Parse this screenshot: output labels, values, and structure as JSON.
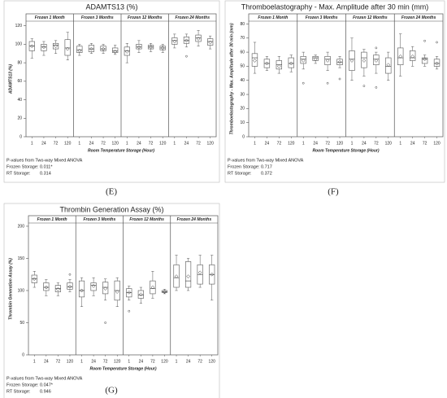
{
  "chart_data": [
    {
      "type": "box",
      "title": "ADAMTS13 (%)",
      "ylabel": "ADAMTS13 (%)",
      "xlabel": "Room Temperature Storage (Hour)",
      "panel_label": "(E)",
      "ylim": [
        0,
        125
      ],
      "yticks": [
        0,
        20,
        40,
        60,
        80,
        100,
        120
      ],
      "pvalues_heading": "P-values from Two-way Mixed ANOVA",
      "pvalues": [
        {
          "label": "Frozen Storage:",
          "value": "0.011*"
        },
        {
          "label": "RT Storage:",
          "value": "0.314"
        }
      ],
      "facets": [
        {
          "name": "Frozen  1 Month",
          "categories": [
            "1",
            "24",
            "72",
            "120"
          ],
          "boxes": [
            {
              "min": 85,
              "q1": 93,
              "median": 98,
              "q3": 103,
              "max": 106,
              "mean": 98,
              "outliers": []
            },
            {
              "min": 88,
              "q1": 93,
              "median": 97,
              "q3": 100,
              "max": 103,
              "mean": 97,
              "outliers": []
            },
            {
              "min": 90,
              "q1": 95,
              "median": 99,
              "q3": 101,
              "max": 104,
              "mean": 98,
              "outliers": []
            },
            {
              "min": 83,
              "q1": 88,
              "median": 96,
              "q3": 105,
              "max": 113,
              "mean": 95,
              "outliers": []
            }
          ]
        },
        {
          "name": "Frozen  3 Months",
          "categories": [
            "1",
            "24",
            "72",
            "120"
          ],
          "boxes": [
            {
              "min": 88,
              "q1": 91,
              "median": 94,
              "q3": 98,
              "max": 100,
              "mean": 93,
              "outliers": []
            },
            {
              "min": 90,
              "q1": 92,
              "median": 95,
              "q3": 99,
              "max": 101,
              "mean": 95,
              "outliers": []
            },
            {
              "min": 90,
              "q1": 93,
              "median": 95,
              "q3": 98,
              "max": 100,
              "mean": 95,
              "outliers": []
            },
            {
              "min": 89,
              "q1": 91,
              "median": 93,
              "q3": 96,
              "max": 99,
              "mean": 92,
              "outliers": []
            }
          ]
        },
        {
          "name": "Frozen  12 Months",
          "categories": [
            "1",
            "24",
            "72",
            "120"
          ],
          "boxes": [
            {
              "min": 80,
              "q1": 88,
              "median": 93,
              "q3": 97,
              "max": 101,
              "mean": 92,
              "outliers": []
            },
            {
              "min": 91,
              "q1": 95,
              "median": 97,
              "q3": 100,
              "max": 104,
              "mean": 97,
              "outliers": []
            },
            {
              "min": 92,
              "q1": 95,
              "median": 97,
              "q3": 99,
              "max": 101,
              "mean": 97,
              "outliers": []
            },
            {
              "min": 91,
              "q1": 94,
              "median": 96,
              "q3": 98,
              "max": 100,
              "mean": 96,
              "outliers": []
            }
          ]
        },
        {
          "name": "Frozen  24 Months",
          "categories": [
            "1",
            "24",
            "72",
            "120"
          ],
          "boxes": [
            {
              "min": 96,
              "q1": 100,
              "median": 104,
              "q3": 107,
              "max": 111,
              "mean": 103,
              "outliers": []
            },
            {
              "min": 97,
              "q1": 101,
              "median": 104,
              "q3": 108,
              "max": 111,
              "mean": 104,
              "outliers": [
                87
              ]
            },
            {
              "min": 98,
              "q1": 103,
              "median": 107,
              "q3": 110,
              "max": 115,
              "mean": 106,
              "outliers": []
            },
            {
              "min": 95,
              "q1": 99,
              "median": 103,
              "q3": 106,
              "max": 109,
              "mean": 102,
              "outliers": []
            }
          ]
        }
      ]
    },
    {
      "type": "box",
      "title": "Thromboelastography - Max. Amplitude after 30 min (mm)",
      "ylabel": "Thromboelastography - Max. Amplitude after 30 min (mm)",
      "xlabel": "Room Temperature Storage (Hour)",
      "panel_label": "(F)",
      "ylim": [
        0,
        82
      ],
      "yticks": [
        0,
        10,
        20,
        30,
        40,
        50,
        60,
        70,
        80
      ],
      "pvalues_heading": "P-values from Two-way Mixed ANOVA",
      "pvalues": [
        {
          "label": "Frozen Storage:",
          "value": "0.717"
        },
        {
          "label": "RT Storage:",
          "value": "0.372"
        }
      ],
      "facets": [
        {
          "name": "Frozen  1 Month",
          "categories": [
            "1",
            "24",
            "72",
            "120"
          ],
          "boxes": [
            {
              "min": 45,
              "q1": 50,
              "median": 56,
              "q3": 59,
              "max": 67,
              "mean": 54,
              "outliers": []
            },
            {
              "min": 47,
              "q1": 49,
              "median": 52,
              "q3": 55,
              "max": 57,
              "mean": 52,
              "outliers": []
            },
            {
              "min": 45,
              "q1": 48,
              "median": 51,
              "q3": 54,
              "max": 57,
              "mean": 50,
              "outliers": []
            },
            {
              "min": 46,
              "q1": 49,
              "median": 52,
              "q3": 56,
              "max": 58,
              "mean": 52,
              "outliers": []
            }
          ]
        },
        {
          "name": "Frozen  3 Months",
          "categories": [
            "1",
            "24",
            "72",
            "120"
          ],
          "boxes": [
            {
              "min": 48,
              "q1": 52,
              "median": 55,
              "q3": 57,
              "max": 60,
              "mean": 54,
              "outliers": [
                38
              ]
            },
            {
              "min": 52,
              "q1": 54,
              "median": 56,
              "q3": 57,
              "max": 58,
              "mean": 55,
              "outliers": []
            },
            {
              "min": 47,
              "q1": 51,
              "median": 55,
              "q3": 57,
              "max": 60,
              "mean": 54,
              "outliers": [
                38
              ]
            },
            {
              "min": 49,
              "q1": 51,
              "median": 53,
              "q3": 55,
              "max": 57,
              "mean": 53,
              "outliers": [
                41
              ]
            }
          ]
        },
        {
          "name": "Frozen  12 Months",
          "categories": [
            "1",
            "24",
            "72",
            "120"
          ],
          "boxes": [
            {
              "min": 40,
              "q1": 47,
              "median": 55,
              "q3": 61,
              "max": 70,
              "mean": 54,
              "outliers": []
            },
            {
              "min": 43,
              "q1": 49,
              "median": 56,
              "q3": 60,
              "max": 62,
              "mean": 54,
              "outliers": [
                36
              ]
            },
            {
              "min": 45,
              "q1": 51,
              "median": 55,
              "q3": 58,
              "max": 60,
              "mean": 54,
              "outliers": [
                63,
                35
              ]
            },
            {
              "min": 40,
              "q1": 45,
              "median": 50,
              "q3": 56,
              "max": 60,
              "mean": 51,
              "outliers": []
            }
          ]
        },
        {
          "name": "Frozen  24 Months",
          "categories": [
            "1",
            "24",
            "72",
            "120"
          ],
          "boxes": [
            {
              "min": 43,
              "q1": 51,
              "median": 56,
              "q3": 63,
              "max": 73,
              "mean": 57,
              "outliers": []
            },
            {
              "min": 50,
              "q1": 54,
              "median": 56,
              "q3": 61,
              "max": 64,
              "mean": 57,
              "outliers": []
            },
            {
              "min": 50,
              "q1": 52,
              "median": 55,
              "q3": 56,
              "max": 58,
              "mean": 55,
              "outliers": [
                68
              ]
            },
            {
              "min": 48,
              "q1": 50,
              "median": 52,
              "q3": 55,
              "max": 57,
              "mean": 52,
              "outliers": [
                67
              ]
            }
          ]
        }
      ]
    },
    {
      "type": "box",
      "title": "Thrombin Generation Assay (%)",
      "ylabel": "Thrombin Generation Assay (%)",
      "xlabel": "Room Temperature Storage (Hour)",
      "panel_label": "(G)",
      "ylim": [
        0,
        205
      ],
      "yticks": [
        0,
        50,
        100,
        150,
        200
      ],
      "pvalues_heading": "P-values from Two-way Mixed ANOVA",
      "pvalues": [
        {
          "label": "Frozen Storage:",
          "value": "0.047*"
        },
        {
          "label": "RT Storage:",
          "value": "0.946"
        }
      ],
      "facets": [
        {
          "name": "Frozen  1 Month",
          "categories": [
            "1",
            "24",
            "72",
            "120"
          ],
          "boxes": [
            {
              "min": 105,
              "q1": 112,
              "median": 118,
              "q3": 124,
              "max": 130,
              "mean": 118,
              "outliers": []
            },
            {
              "min": 92,
              "q1": 100,
              "median": 105,
              "q3": 112,
              "max": 117,
              "mean": 105,
              "outliers": []
            },
            {
              "min": 92,
              "q1": 98,
              "median": 103,
              "q3": 108,
              "max": 112,
              "mean": 102,
              "outliers": []
            },
            {
              "min": 98,
              "q1": 102,
              "median": 106,
              "q3": 112,
              "max": 117,
              "mean": 106,
              "outliers": [
                125
              ]
            }
          ]
        },
        {
          "name": "Frozen  3 Months",
          "categories": [
            "1",
            "24",
            "72",
            "120"
          ],
          "boxes": [
            {
              "min": 75,
              "q1": 90,
              "median": 100,
              "q3": 115,
              "max": 120,
              "mean": 100,
              "outliers": []
            },
            {
              "min": 92,
              "q1": 100,
              "median": 108,
              "q3": 112,
              "max": 120,
              "mean": 107,
              "outliers": []
            },
            {
              "min": 85,
              "q1": 95,
              "median": 105,
              "q3": 113,
              "max": 118,
              "mean": 103,
              "outliers": [
                50
              ]
            },
            {
              "min": 75,
              "q1": 85,
              "median": 100,
              "q3": 115,
              "max": 120,
              "mean": 98,
              "outliers": []
            }
          ]
        },
        {
          "name": "Frozen  12 Months",
          "categories": [
            "1",
            "24",
            "72",
            "120"
          ],
          "boxes": [
            {
              "min": 85,
              "q1": 90,
              "median": 97,
              "q3": 103,
              "max": 107,
              "mean": 97,
              "outliers": [
                68
              ]
            },
            {
              "min": 80,
              "q1": 88,
              "median": 93,
              "q3": 100,
              "max": 105,
              "mean": 94,
              "outliers": []
            },
            {
              "min": 88,
              "q1": 95,
              "median": 103,
              "q3": 115,
              "max": 130,
              "mean": 105,
              "outliers": []
            },
            {
              "min": 95,
              "q1": 97,
              "median": 98,
              "q3": 100,
              "max": 102,
              "mean": 98,
              "outliers": []
            }
          ]
        },
        {
          "name": "Frozen  24 Months",
          "categories": [
            "1",
            "24",
            "72",
            "120"
          ],
          "boxes": [
            {
              "min": 100,
              "q1": 105,
              "median": 120,
              "q3": 140,
              "max": 155,
              "mean": 122,
              "outliers": []
            },
            {
              "min": 100,
              "q1": 105,
              "median": 115,
              "q3": 145,
              "max": 150,
              "mean": 122,
              "outliers": []
            },
            {
              "min": 105,
              "q1": 110,
              "median": 125,
              "q3": 140,
              "max": 155,
              "mean": 128,
              "outliers": []
            },
            {
              "min": 85,
              "q1": 110,
              "median": 125,
              "q3": 140,
              "max": 155,
              "mean": 125,
              "outliers": []
            }
          ]
        }
      ]
    }
  ]
}
